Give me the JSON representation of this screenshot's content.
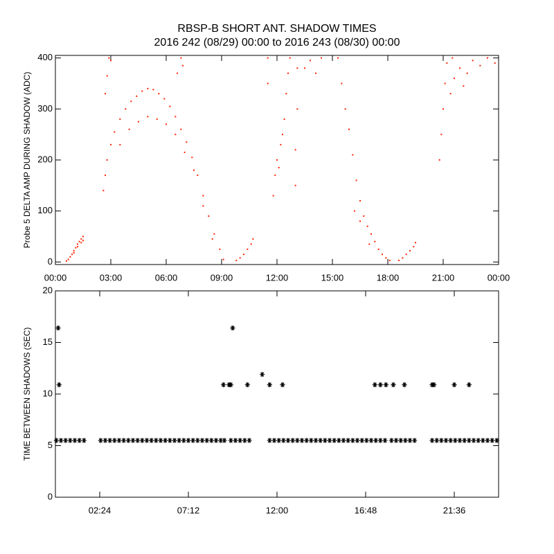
{
  "chart_data": [
    {
      "type": "scatter",
      "title": "RBSP-B SHORT ANT. SHADOW TIMES",
      "subtitle": "2016 242 (08/29) 00:00 to 2016 243 (08/30) 00:00",
      "ylabel": "Probe 5 DELTA AMP DURING SHADOW (ADC)",
      "color": "#ff2200",
      "marker": "dot",
      "xlim": [
        0,
        24
      ],
      "ylim": [
        -5,
        405
      ],
      "xticks": [
        {
          "value": 0,
          "label": "00:00"
        },
        {
          "value": 3,
          "label": "03:00"
        },
        {
          "value": 6,
          "label": "06:00"
        },
        {
          "value": 9,
          "label": "09:00"
        },
        {
          "value": 12,
          "label": "12:00"
        },
        {
          "value": 15,
          "label": "15:00"
        },
        {
          "value": 18,
          "label": "18:00"
        },
        {
          "value": 21,
          "label": "21:00"
        },
        {
          "value": 24,
          "label": "00:00"
        }
      ],
      "yticks": [
        0,
        100,
        200,
        300,
        400
      ],
      "x": [
        0.6,
        0.7,
        0.8,
        0.9,
        1.0,
        1.1,
        1.2,
        1.3,
        1.4,
        1.5,
        1.0,
        1.2,
        1.4,
        1.5,
        2.6,
        2.7,
        2.8,
        3.0,
        3.2,
        3.5,
        3.8,
        4.1,
        4.4,
        4.7,
        5.0,
        5.3,
        5.6,
        5.9,
        6.2,
        6.5,
        6.8,
        7.1,
        7.4,
        7.7,
        8.0,
        8.3,
        8.6,
        8.9,
        9.1,
        3.5,
        4.0,
        4.5,
        5.0,
        5.5,
        6.0,
        6.5,
        7.0,
        7.5,
        8.0,
        8.5,
        2.7,
        2.8,
        2.9,
        3.0,
        6.6,
        6.8,
        6.9,
        9.8,
        10.0,
        10.2,
        10.4,
        10.6,
        10.7,
        11.8,
        11.9,
        12.0,
        12.1,
        12.2,
        12.3,
        12.4,
        12.5,
        12.6,
        12.7,
        13.0,
        13.0,
        13.1,
        13.1,
        13.5,
        13.8,
        14.1,
        14.4,
        11.5,
        11.5,
        15.3,
        15.5,
        15.7,
        15.9,
        16.1,
        16.3,
        16.5,
        16.7,
        16.9,
        17.1,
        17.3,
        17.5,
        17.7,
        17.9,
        18.1,
        16.2,
        16.5,
        17.0,
        18.6,
        18.8,
        19.0,
        19.2,
        19.4,
        19.5,
        20.8,
        20.9,
        21.0,
        21.1,
        21.2,
        21.4,
        21.6,
        21.9,
        22.3,
        22.6,
        23.0,
        23.4,
        23.8,
        21.5,
        22.1
      ],
      "y": [
        2,
        5,
        10,
        15,
        22,
        28,
        35,
        40,
        45,
        50,
        18,
        30,
        38,
        42,
        140,
        170,
        200,
        230,
        255,
        280,
        300,
        315,
        325,
        335,
        340,
        338,
        330,
        320,
        305,
        285,
        260,
        235,
        205,
        170,
        130,
        90,
        55,
        25,
        5,
        230,
        260,
        275,
        285,
        280,
        270,
        250,
        215,
        180,
        110,
        45,
        330,
        365,
        400,
        395,
        370,
        400,
        385,
        3,
        8,
        15,
        25,
        35,
        45,
        130,
        170,
        200,
        185,
        230,
        250,
        280,
        330,
        370,
        400,
        150,
        220,
        300,
        380,
        380,
        395,
        370,
        400,
        400,
        350,
        400,
        350,
        300,
        260,
        210,
        160,
        120,
        90,
        70,
        55,
        40,
        25,
        15,
        8,
        3,
        100,
        80,
        35,
        3,
        8,
        15,
        22,
        30,
        38,
        200,
        250,
        300,
        350,
        390,
        330,
        360,
        380,
        370,
        395,
        385,
        400,
        390,
        400,
        345
      ]
    },
    {
      "type": "scatter",
      "ylabel": "TIME BETWEEN SHADOWS (SEC)",
      "color": "#000000",
      "marker": "star",
      "xlim": [
        0,
        24
      ],
      "ylim": [
        0,
        20
      ],
      "xticks": [
        {
          "value": 2.4,
          "label": "02:24"
        },
        {
          "value": 7.2,
          "label": "07:12"
        },
        {
          "value": 12,
          "label": "12:00"
        },
        {
          "value": 16.8,
          "label": "16:48"
        },
        {
          "value": 21.6,
          "label": "21:36"
        }
      ],
      "yticks": [
        0,
        5,
        10,
        15,
        20
      ],
      "x": [
        0.05,
        0.3,
        0.55,
        0.8,
        1.05,
        1.3,
        1.55,
        2.45,
        2.7,
        2.95,
        3.2,
        3.45,
        3.7,
        3.95,
        4.2,
        4.45,
        4.7,
        4.95,
        5.2,
        5.45,
        5.7,
        5.95,
        6.2,
        6.45,
        6.7,
        6.95,
        7.2,
        7.45,
        7.7,
        7.95,
        8.2,
        8.45,
        8.7,
        8.95,
        9.15,
        9.5,
        9.75,
        10,
        10.25,
        10.5,
        11.6,
        11.85,
        12.1,
        12.35,
        12.6,
        12.85,
        13.1,
        13.35,
        13.6,
        13.85,
        14.1,
        14.35,
        14.6,
        14.85,
        15.1,
        15.35,
        15.6,
        15.85,
        16.1,
        16.35,
        16.6,
        16.85,
        17.1,
        17.35,
        17.6,
        17.85,
        18.2,
        18.45,
        18.7,
        18.95,
        19.2,
        19.45,
        20.4,
        20.65,
        20.9,
        21.15,
        21.4,
        21.65,
        21.9,
        22.15,
        22.4,
        22.65,
        22.9,
        23.15,
        23.4,
        23.65,
        23.9,
        0.15,
        0.2,
        9.1,
        9.4,
        9.5,
        9.6,
        10.4,
        11.2,
        11.6,
        12.3,
        17.3,
        17.6,
        17.9,
        18.3,
        18.9,
        20.4,
        20.5,
        21.6,
        22.4
      ],
      "y": [
        5.5,
        5.5,
        5.5,
        5.5,
        5.5,
        5.5,
        5.5,
        5.5,
        5.5,
        5.5,
        5.5,
        5.5,
        5.5,
        5.5,
        5.5,
        5.5,
        5.5,
        5.5,
        5.5,
        5.5,
        5.5,
        5.5,
        5.5,
        5.5,
        5.5,
        5.5,
        5.5,
        5.5,
        5.5,
        5.5,
        5.5,
        5.5,
        5.5,
        5.5,
        5.5,
        5.5,
        5.5,
        5.5,
        5.5,
        5.5,
        5.5,
        5.5,
        5.5,
        5.5,
        5.5,
        5.5,
        5.5,
        5.5,
        5.5,
        5.5,
        5.5,
        5.5,
        5.5,
        5.5,
        5.5,
        5.5,
        5.5,
        5.5,
        5.5,
        5.5,
        5.5,
        5.5,
        5.5,
        5.5,
        5.5,
        5.5,
        5.5,
        5.5,
        5.5,
        5.5,
        5.5,
        5.5,
        5.5,
        5.5,
        5.5,
        5.5,
        5.5,
        5.5,
        5.5,
        5.5,
        5.5,
        5.5,
        5.5,
        5.5,
        5.5,
        5.5,
        5.5,
        16.4,
        10.9,
        10.9,
        10.9,
        10.9,
        16.4,
        10.9,
        11.9,
        10.9,
        10.9,
        10.9,
        10.9,
        10.9,
        10.9,
        10.9,
        10.9,
        10.9,
        10.9,
        10.9
      ]
    }
  ]
}
